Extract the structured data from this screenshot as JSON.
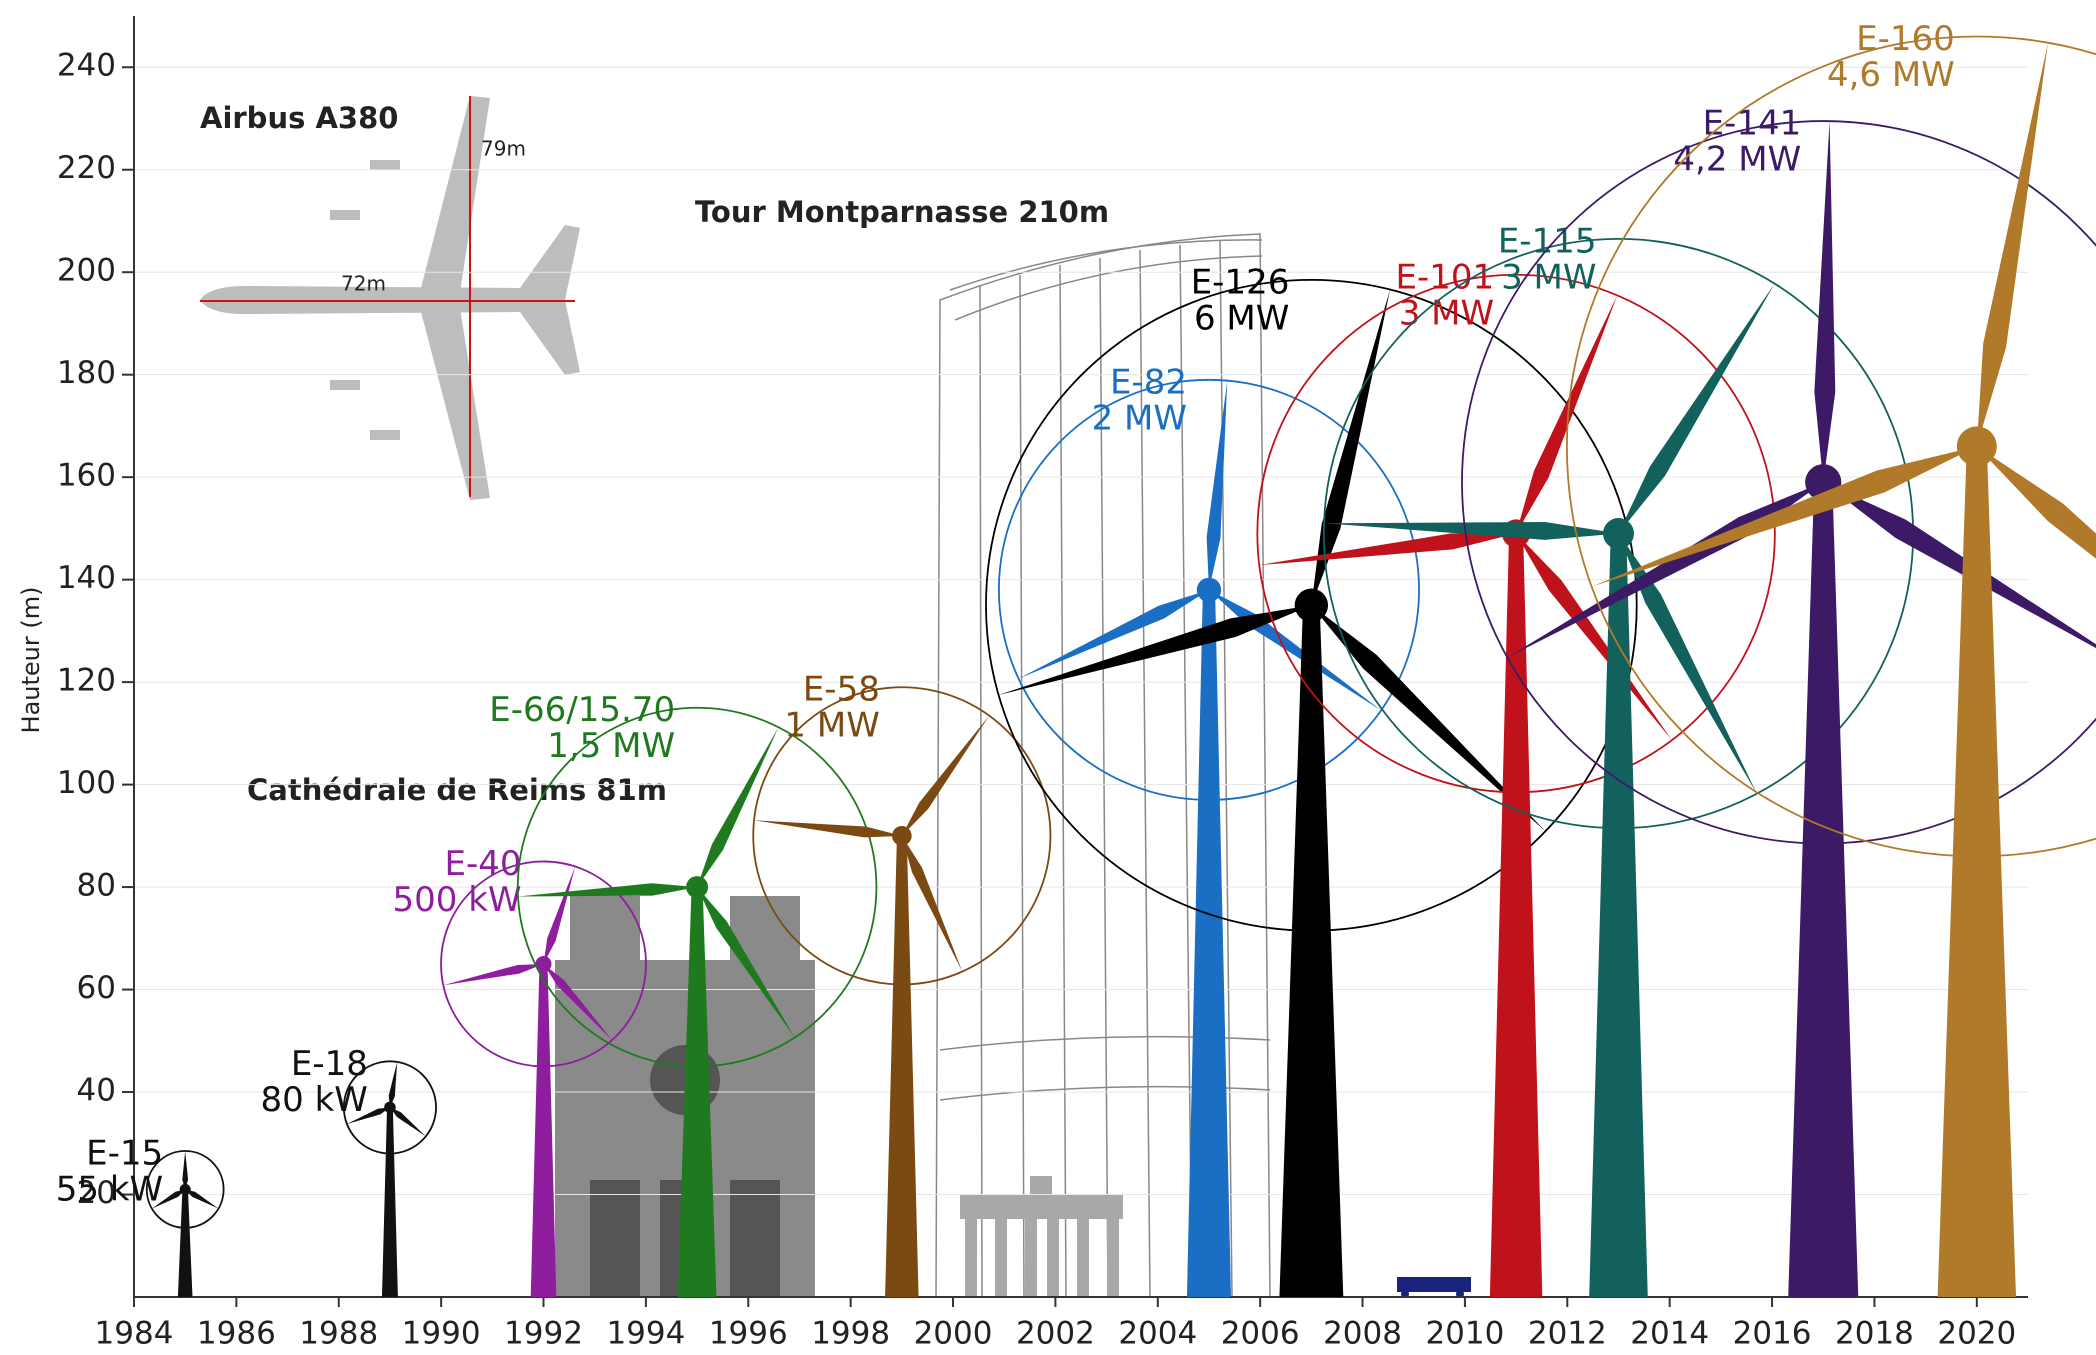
{
  "chart_data": {
    "type": "turbine",
    "y_label": "Hauteur (m)",
    "xlim": [
      1984,
      2021
    ],
    "ylim": [
      0,
      250
    ],
    "xticks": [
      1984,
      1986,
      1988,
      1990,
      1992,
      1994,
      1996,
      1998,
      2000,
      2002,
      2004,
      2006,
      2008,
      2010,
      2012,
      2014,
      2016,
      2018,
      2020
    ],
    "yticks": [
      20,
      40,
      60,
      80,
      100,
      120,
      140,
      160,
      180,
      200,
      220,
      240
    ],
    "grid": true,
    "annotations": {
      "airbus": "Airbus A380",
      "airbus_height": "79m",
      "airbus_length": "72m",
      "montparnasse": "Tour Montparnasse 210m",
      "reims": "Cathédrale de Reims 81m"
    },
    "series": [
      {
        "name": "E-15",
        "power": "55 kW",
        "color": "#111111",
        "x": 1985,
        "hub_height": 21,
        "rotor_diameter": 15
      },
      {
        "name": "E-18",
        "power": "80 kW",
        "color": "#111111",
        "x": 1989,
        "hub_height": 37,
        "rotor_diameter": 18
      },
      {
        "name": "E-40",
        "power": "500 kW",
        "color": "#8e1e9e",
        "x": 1992,
        "hub_height": 65,
        "rotor_diameter": 40
      },
      {
        "name": "E-66/15.70",
        "power": "1,5 MW",
        "color": "#1f7a1f",
        "x": 1995,
        "hub_height": 80,
        "rotor_diameter": 70
      },
      {
        "name": "E-58",
        "power": "1 MW",
        "color": "#7a4a12",
        "x": 1999,
        "hub_height": 90,
        "rotor_diameter": 58
      },
      {
        "name": "E-82",
        "power": "2 MW",
        "color": "#1a6fc4",
        "x": 2005,
        "hub_height": 138,
        "rotor_diameter": 82
      },
      {
        "name": "E-126",
        "power": "6 MW",
        "color": "#000000",
        "x": 2007,
        "hub_height": 135,
        "rotor_diameter": 127
      },
      {
        "name": "E-101",
        "power": "3 MW",
        "color": "#c0121a",
        "x": 2011,
        "hub_height": 149,
        "rotor_diameter": 101
      },
      {
        "name": "E-115",
        "power": "3 MW",
        "color": "#12615c",
        "x": 2013,
        "hub_height": 149,
        "rotor_diameter": 115
      },
      {
        "name": "E-141",
        "power": "4,2 MW",
        "color": "#3c1a66",
        "x": 2017,
        "hub_height": 159,
        "rotor_diameter": 141
      },
      {
        "name": "E-160",
        "power": "4,6 MW",
        "color": "#b07a2a",
        "x": 2020,
        "hub_height": 166,
        "rotor_diameter": 160
      }
    ]
  }
}
